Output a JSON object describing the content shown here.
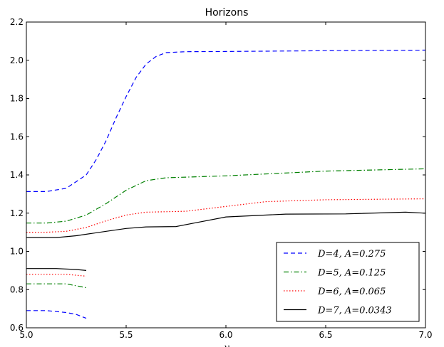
{
  "chart_data": {
    "type": "line",
    "title": "Horizons",
    "xlabel": "y",
    "ylabel": "",
    "xlim": [
      5.0,
      7.0
    ],
    "ylim": [
      0.6,
      2.2
    ],
    "xticks": [
      "5.0",
      "5.5",
      "6.0",
      "6.5",
      "7.0"
    ],
    "yticks": [
      "0.6",
      "0.8",
      "1.0",
      "1.2",
      "1.4",
      "1.6",
      "1.8",
      "2.0",
      "2.2"
    ],
    "grid": false,
    "legend_position": "lower-right",
    "series": [
      {
        "name": "D=4, A=0.275",
        "color": "#0000ff",
        "dash": "dashed",
        "segments": [
          [
            [
              5.0,
              1.313
            ],
            [
              5.1,
              1.313
            ],
            [
              5.2,
              1.33
            ],
            [
              5.3,
              1.4
            ],
            [
              5.35,
              1.48
            ],
            [
              5.4,
              1.58
            ],
            [
              5.45,
              1.7
            ],
            [
              5.5,
              1.81
            ],
            [
              5.55,
              1.91
            ],
            [
              5.6,
              1.98
            ],
            [
              5.65,
              2.02
            ],
            [
              5.7,
              2.04
            ],
            [
              5.8,
              2.045
            ],
            [
              6.0,
              2.046
            ],
            [
              6.5,
              2.05
            ],
            [
              7.0,
              2.053
            ]
          ],
          [
            [
              5.0,
              0.69
            ],
            [
              5.1,
              0.69
            ],
            [
              5.2,
              0.68
            ],
            [
              5.25,
              0.67
            ],
            [
              5.3,
              0.65
            ]
          ]
        ]
      },
      {
        "name": "D=5, A=0.125",
        "color": "#008000",
        "dash": "dashdot",
        "segments": [
          [
            [
              5.0,
              1.148
            ],
            [
              5.1,
              1.148
            ],
            [
              5.2,
              1.158
            ],
            [
              5.3,
              1.19
            ],
            [
              5.4,
              1.25
            ],
            [
              5.5,
              1.32
            ],
            [
              5.6,
              1.37
            ],
            [
              5.7,
              1.385
            ],
            [
              6.0,
              1.395
            ],
            [
              6.5,
              1.42
            ],
            [
              7.0,
              1.432
            ]
          ],
          [
            [
              5.0,
              0.83
            ],
            [
              5.1,
              0.83
            ],
            [
              5.2,
              0.83
            ],
            [
              5.25,
              0.82
            ],
            [
              5.3,
              0.81
            ]
          ]
        ]
      },
      {
        "name": "D=6, A=0.065",
        "color": "#ff0000",
        "dash": "dotted",
        "segments": [
          [
            [
              5.0,
              1.1
            ],
            [
              5.1,
              1.1
            ],
            [
              5.2,
              1.105
            ],
            [
              5.3,
              1.125
            ],
            [
              5.4,
              1.16
            ],
            [
              5.5,
              1.19
            ],
            [
              5.6,
              1.205
            ],
            [
              5.8,
              1.21
            ],
            [
              6.0,
              1.235
            ],
            [
              6.2,
              1.26
            ],
            [
              6.5,
              1.27
            ],
            [
              7.0,
              1.275
            ]
          ],
          [
            [
              5.0,
              0.88
            ],
            [
              5.1,
              0.88
            ],
            [
              5.2,
              0.88
            ],
            [
              5.25,
              0.875
            ],
            [
              5.3,
              0.87
            ]
          ]
        ]
      },
      {
        "name": "D=7, A=0.0343",
        "color": "#000000",
        "dash": "solid",
        "segments": [
          [
            [
              5.0,
              1.072
            ],
            [
              5.15,
              1.072
            ],
            [
              5.25,
              1.082
            ],
            [
              5.4,
              1.105
            ],
            [
              5.5,
              1.12
            ],
            [
              5.6,
              1.128
            ],
            [
              5.75,
              1.13
            ],
            [
              5.85,
              1.15
            ],
            [
              6.0,
              1.18
            ],
            [
              6.3,
              1.195
            ],
            [
              6.6,
              1.196
            ],
            [
              6.9,
              1.205
            ],
            [
              7.0,
              1.2
            ]
          ],
          [
            [
              5.0,
              0.91
            ],
            [
              5.15,
              0.91
            ],
            [
              5.25,
              0.905
            ],
            [
              5.3,
              0.9
            ]
          ]
        ]
      }
    ]
  }
}
